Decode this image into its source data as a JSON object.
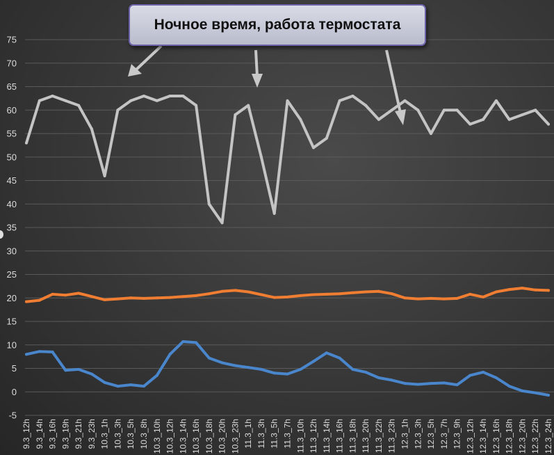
{
  "annotation": {
    "text": "Ночное время, работа термостата"
  },
  "chart_data": {
    "type": "line",
    "ylim": [
      -5,
      75
    ],
    "yticks": [
      -5,
      0,
      5,
      10,
      15,
      20,
      25,
      30,
      35,
      40,
      45,
      50,
      55,
      60,
      65,
      70,
      75
    ],
    "categories": [
      "9.3_12h",
      "9.3_14h",
      "9.3_16h",
      "9.3_19h",
      "9.3_21h",
      "9.3_23h",
      "10.3_1h",
      "10.3_3h",
      "10.3_5h",
      "10.3_8h",
      "10.3_10h",
      "10.3_12h",
      "10.3_14h",
      "10.3_16h",
      "10.3_18h",
      "10.3_20h",
      "10.3_23h",
      "11.3_1h",
      "11.3_3h",
      "11.3_5h",
      "11.3_7h",
      "11.3_10h",
      "11.3_12h",
      "11.3_14h",
      "11.3_16h",
      "11.3_18h",
      "11.3_20h",
      "11.3_22h",
      "11.3_23h",
      "12.3_1h",
      "12.3_3h",
      "12.3_5h",
      "12.3_7h",
      "12.3_9h",
      "12.3_12h",
      "12.3_14h",
      "12.3_16h",
      "12.3_18h",
      "12.3_20h",
      "12.3_22h",
      "12.3_24h"
    ],
    "series": [
      {
        "color": "#c4c4c4",
        "values": [
          53,
          62,
          63,
          62,
          61,
          56,
          46,
          60,
          62,
          63,
          62,
          63,
          63,
          61,
          40,
          36,
          59,
          61,
          50,
          38,
          62,
          58,
          52,
          54,
          62,
          63,
          61,
          58,
          60,
          62,
          60,
          55,
          60,
          60,
          57,
          58,
          62,
          58,
          59,
          60,
          57
        ]
      },
      {
        "color": "#ef7d32",
        "values": [
          19.2,
          19.5,
          20.8,
          20.6,
          21.0,
          20.3,
          19.6,
          19.8,
          20.0,
          19.9,
          20.0,
          20.1,
          20.3,
          20.5,
          20.9,
          21.4,
          21.6,
          21.3,
          20.7,
          20.1,
          20.2,
          20.5,
          20.7,
          20.8,
          20.9,
          21.1,
          21.3,
          21.4,
          20.9,
          20.0,
          19.8,
          19.9,
          19.8,
          19.9,
          20.8,
          20.2,
          21.3,
          21.8,
          22.1,
          21.7,
          21.6
        ]
      },
      {
        "color": "#4a86cc",
        "values": [
          8.0,
          8.6,
          8.5,
          4.6,
          4.8,
          3.8,
          2.0,
          1.2,
          1.5,
          1.2,
          3.5,
          8.0,
          10.7,
          10.5,
          7.2,
          6.2,
          5.6,
          5.2,
          4.8,
          4.0,
          3.8,
          4.8,
          6.5,
          8.3,
          7.2,
          4.8,
          4.2,
          3.0,
          2.5,
          1.8,
          1.6,
          1.8,
          1.9,
          1.5,
          3.5,
          4.2,
          3.0,
          1.2,
          0.2,
          -0.2,
          -0.7
        ]
      }
    ]
  }
}
